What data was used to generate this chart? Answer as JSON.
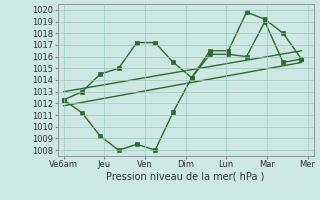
{
  "xlabel": "Pression niveau de la mer( hPa )",
  "x_ticks_labels": [
    "Ve6am",
    "Jeu",
    "Ven",
    "Dim",
    "Lun",
    "Mar",
    "Mer"
  ],
  "x_ticks_pos": [
    0,
    1,
    2,
    3,
    4,
    5,
    6
  ],
  "ylim": [
    1007.5,
    1020.5
  ],
  "yticks": [
    1008,
    1009,
    1010,
    1011,
    1012,
    1013,
    1014,
    1015,
    1016,
    1017,
    1018,
    1019,
    1020
  ],
  "line_color": "#2d6a2d",
  "bg_color": "#cde8e2",
  "grid_color": "#9dc8c0",
  "series": [
    {
      "x": [
        0,
        0.45,
        0.9,
        1.35,
        1.8,
        2.25,
        2.7,
        3.15,
        3.6,
        4.05,
        4.5,
        4.95,
        5.4,
        5.85
      ],
      "y": [
        1012.3,
        1011.2,
        1009.2,
        1008.0,
        1008.5,
        1008.0,
        1011.3,
        1014.2,
        1016.2,
        1016.2,
        1016.0,
        1019.0,
        1015.5,
        1015.8
      ],
      "marker": "s",
      "ms": 2.5,
      "lw": 1.0
    },
    {
      "x": [
        0,
        0.45,
        0.9,
        1.35,
        1.8,
        2.25,
        2.7,
        3.15,
        3.6,
        4.05,
        4.5,
        4.95,
        5.4,
        5.85
      ],
      "y": [
        1012.3,
        1013.0,
        1014.5,
        1015.0,
        1017.2,
        1017.2,
        1015.5,
        1014.2,
        1016.5,
        1016.5,
        1019.8,
        1019.2,
        1018.0,
        1015.8
      ],
      "marker": "s",
      "ms": 2.5,
      "lw": 1.0
    },
    {
      "x": [
        0,
        5.85
      ],
      "y": [
        1011.8,
        1015.5
      ],
      "marker": null,
      "ms": 0,
      "lw": 1.0
    },
    {
      "x": [
        0,
        5.85
      ],
      "y": [
        1013.0,
        1016.5
      ],
      "marker": null,
      "ms": 0,
      "lw": 1.0
    }
  ]
}
